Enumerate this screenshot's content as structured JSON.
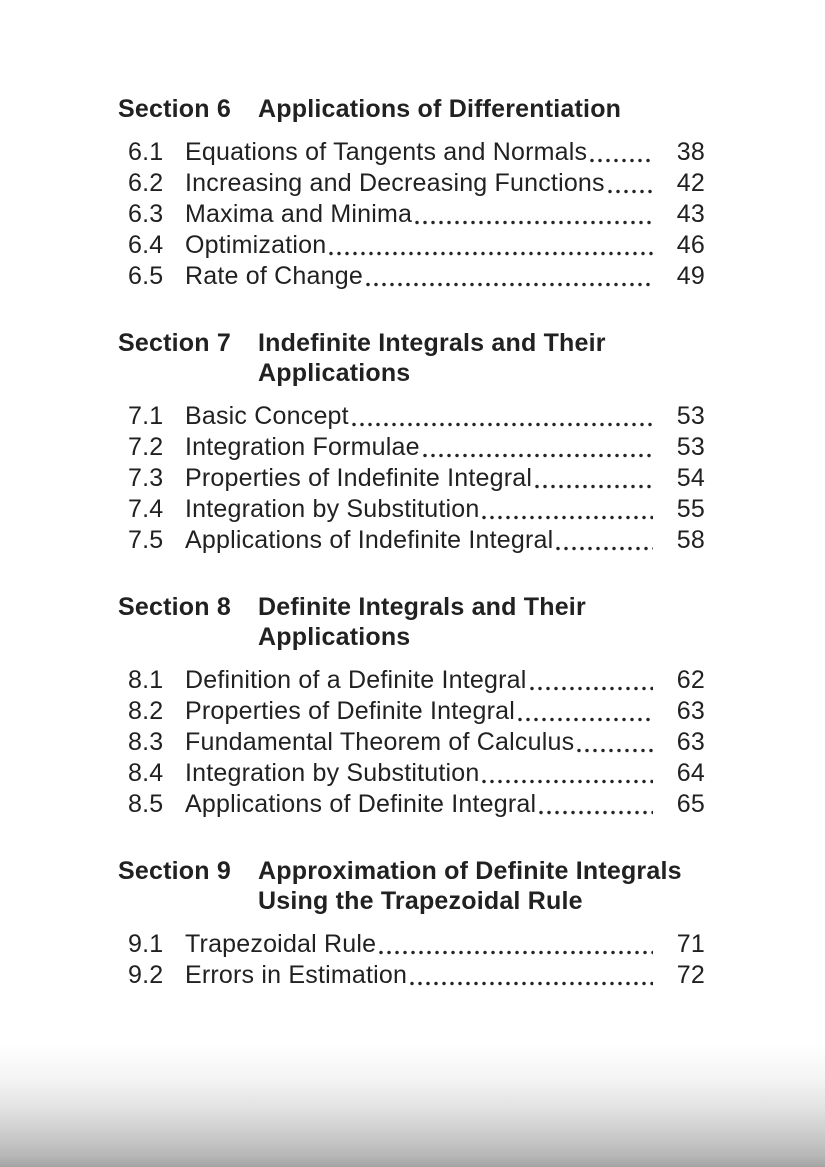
{
  "page": {
    "background_color": "#ffffff",
    "text_color": "#212121",
    "bottom_shadow_color": "#a2a2a2"
  },
  "toc": {
    "sections": [
      {
        "label": "Section 6",
        "title": "Applications of Differentiation",
        "entries": [
          {
            "num": "6.1",
            "title": "Equations of Tangents and Normals",
            "page": "38"
          },
          {
            "num": "6.2",
            "title": "Increasing and Decreasing Functions",
            "page": "42"
          },
          {
            "num": "6.3",
            "title": "Maxima and Minima",
            "page": "43"
          },
          {
            "num": "6.4",
            "title": "Optimization",
            "page": "46"
          },
          {
            "num": "6.5",
            "title": "Rate of Change",
            "page": "49"
          }
        ]
      },
      {
        "label": "Section 7",
        "title": "Indefinite Integrals and Their\nApplications",
        "entries": [
          {
            "num": "7.1",
            "title": "Basic Concept",
            "page": "53"
          },
          {
            "num": "7.2",
            "title": "Integration Formulae",
            "page": "53"
          },
          {
            "num": "7.3",
            "title": "Properties of Indefinite Integral",
            "page": "54"
          },
          {
            "num": "7.4",
            "title": "Integration by Substitution",
            "page": "55"
          },
          {
            "num": "7.5",
            "title": "Applications of Indefinite Integral",
            "page": "58"
          }
        ]
      },
      {
        "label": "Section 8",
        "title": "Definite Integrals and Their\nApplications",
        "entries": [
          {
            "num": "8.1",
            "title": "Definition of a Definite Integral",
            "page": "62"
          },
          {
            "num": "8.2",
            "title": "Properties of Definite Integral",
            "page": "63"
          },
          {
            "num": "8.3",
            "title": "Fundamental Theorem of Calculus",
            "page": "63"
          },
          {
            "num": "8.4",
            "title": "Integration by Substitution",
            "page": "64"
          },
          {
            "num": "8.5",
            "title": "Applications of Definite Integral",
            "page": "65"
          }
        ]
      },
      {
        "label": "Section 9",
        "title": "Approximation of Definite Integrals\nUsing the Trapezoidal Rule",
        "entries": [
          {
            "num": "9.1",
            "title": "Trapezoidal Rule",
            "page": "71"
          },
          {
            "num": "9.2",
            "title": "Errors in Estimation",
            "page": "72"
          }
        ]
      }
    ]
  }
}
